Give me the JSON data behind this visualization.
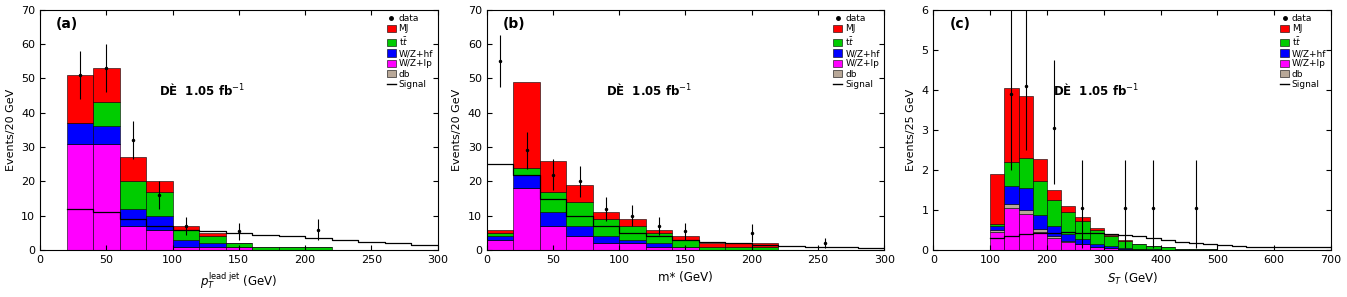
{
  "panel_a": {
    "xlabel": "$p_T^{\\mathrm{lead\\ jet}}$ (GeV)",
    "ylabel": "Events/20 GeV",
    "label": "(a)",
    "xlim": [
      0,
      300
    ],
    "ylim": [
      0,
      70
    ],
    "xticks": [
      0,
      50,
      100,
      150,
      200,
      250,
      300
    ],
    "yticks": [
      0,
      10,
      20,
      30,
      40,
      50,
      60,
      70
    ],
    "bin_edges": [
      20,
      40,
      60,
      80,
      100,
      120,
      140,
      160,
      180,
      200,
      220,
      240,
      260,
      280,
      300
    ],
    "WZlp": [
      31,
      31,
      7,
      6,
      1,
      1,
      1,
      0,
      0,
      0,
      0,
      0,
      0,
      0
    ],
    "db": [
      0,
      0,
      0,
      0,
      0,
      0,
      0,
      0,
      0,
      0,
      0,
      0,
      0,
      0
    ],
    "WZhf": [
      6,
      5,
      5,
      4,
      2,
      1,
      0,
      0,
      0,
      0,
      0,
      0,
      0,
      0
    ],
    "ttbar": [
      0,
      7,
      8,
      7,
      3,
      2,
      1,
      1,
      1,
      1,
      0,
      0,
      0,
      0
    ],
    "MJ": [
      14,
      10,
      7,
      3,
      1,
      1,
      0,
      0,
      0,
      0,
      0,
      0,
      0,
      0
    ],
    "signal": [
      12,
      11,
      9,
      7,
      6,
      5.5,
      5,
      4.5,
      4,
      3.5,
      3,
      2.5,
      2,
      1.5
    ],
    "data_x": [
      30,
      50,
      70,
      90,
      110,
      150,
      210
    ],
    "data_y": [
      51,
      53,
      32,
      16,
      7,
      5.5,
      6
    ],
    "data_yerr_lo": [
      7,
      7,
      5.5,
      4,
      2.5,
      2.5,
      3
    ],
    "data_yerr_hi": [
      7,
      7,
      5.5,
      4,
      2.5,
      2.5,
      3
    ]
  },
  "panel_b": {
    "xlabel": "m* (GeV)",
    "ylabel": "Events/20 GeV",
    "label": "(b)",
    "xlim": [
      0,
      300
    ],
    "ylim": [
      0,
      70
    ],
    "xticks": [
      0,
      50,
      100,
      150,
      200,
      250,
      300
    ],
    "yticks": [
      0,
      10,
      20,
      30,
      40,
      50,
      60,
      70
    ],
    "bin_edges": [
      0,
      20,
      40,
      60,
      80,
      100,
      120,
      140,
      160,
      180,
      200,
      220,
      240,
      260,
      280,
      300
    ],
    "WZlp": [
      3,
      18,
      7,
      4,
      2,
      2,
      1,
      1,
      0,
      0,
      0,
      0,
      0,
      0,
      0
    ],
    "db": [
      0,
      0,
      0,
      0,
      0,
      0,
      0,
      0,
      0,
      0,
      0,
      0,
      0,
      0,
      0
    ],
    "WZhf": [
      1,
      4,
      4,
      3,
      2,
      1,
      1,
      0,
      0,
      0,
      0,
      0,
      0,
      0,
      0
    ],
    "ttbar": [
      1,
      2,
      6,
      7,
      5,
      4,
      3,
      2,
      1,
      1,
      1,
      0,
      0,
      0,
      0
    ],
    "MJ": [
      1,
      25,
      9,
      5,
      2,
      2,
      1,
      1,
      1,
      1,
      1,
      0,
      0,
      0,
      0
    ],
    "signal": [
      25,
      22,
      15,
      10,
      7,
      5,
      4,
      3,
      2.5,
      2,
      1.5,
      1.2,
      1.0,
      0.8,
      0.5
    ],
    "data_x": [
      10,
      30,
      50,
      70,
      90,
      110,
      130,
      150,
      200,
      255
    ],
    "data_y": [
      55,
      29,
      22,
      20,
      12,
      10,
      7,
      5.5,
      5,
      2
    ],
    "data_yerr_lo": [
      7.5,
      5.5,
      4.5,
      4.5,
      3.5,
      3,
      2.5,
      2.5,
      2.5,
      1.5
    ],
    "data_yerr_hi": [
      7.5,
      5.5,
      4.5,
      4.5,
      3.5,
      3,
      2.5,
      2.5,
      2.5,
      1.5
    ]
  },
  "panel_c": {
    "xlabel": "$S_T$ (GeV)",
    "ylabel": "Events/25 GeV",
    "label": "(c)",
    "xlim": [
      0,
      700
    ],
    "ylim": [
      0,
      6
    ],
    "xticks": [
      0,
      100,
      200,
      300,
      400,
      500,
      600,
      700
    ],
    "yticks": [
      0,
      1,
      2,
      3,
      4,
      5,
      6
    ],
    "bin_edges": [
      100,
      125,
      150,
      175,
      200,
      225,
      250,
      275,
      300,
      325,
      350,
      375,
      400,
      425,
      450,
      475,
      500,
      525,
      550,
      700
    ],
    "WZlp": [
      0.45,
      1.05,
      0.9,
      0.45,
      0.3,
      0.2,
      0.15,
      0.08,
      0.05,
      0.03,
      0.02,
      0.01,
      0.01,
      0.0,
      0.0,
      0.0,
      0.0,
      0.0,
      0.0
    ],
    "db": [
      0.05,
      0.1,
      0.1,
      0.08,
      0.05,
      0.03,
      0.01,
      0.0,
      0.0,
      0.0,
      0.0,
      0.0,
      0.0,
      0.0,
      0.0,
      0.0,
      0.0,
      0.0,
      0.0
    ],
    "WZhf": [
      0.1,
      0.45,
      0.55,
      0.35,
      0.25,
      0.18,
      0.12,
      0.08,
      0.05,
      0.03,
      0.02,
      0.01,
      0.0,
      0.0,
      0.0,
      0.0,
      0.0,
      0.0,
      0.0
    ],
    "ttbar": [
      0.05,
      0.6,
      0.75,
      0.85,
      0.65,
      0.55,
      0.45,
      0.35,
      0.25,
      0.18,
      0.12,
      0.08,
      0.06,
      0.04,
      0.03,
      0.02,
      0.01,
      0.01,
      0.0
    ],
    "MJ": [
      1.25,
      1.85,
      1.55,
      0.55,
      0.25,
      0.15,
      0.1,
      0.05,
      0.02,
      0.01,
      0.0,
      0.0,
      0.0,
      0.0,
      0.0,
      0.0,
      0.0,
      0.0,
      0.0
    ],
    "signal": [
      0.3,
      0.35,
      0.4,
      0.42,
      0.44,
      0.46,
      0.44,
      0.42,
      0.4,
      0.38,
      0.35,
      0.3,
      0.25,
      0.2,
      0.18,
      0.15,
      0.12,
      0.1,
      0.08
    ],
    "data_x": [
      137.5,
      162.5,
      212.5,
      262.5,
      337.5,
      387.5,
      462.5
    ],
    "data_y": [
      3.9,
      4.1,
      3.05,
      1.05,
      1.05,
      1.05,
      1.05
    ],
    "data_yerr_lo": [
      1.9,
      1.6,
      1.4,
      1.0,
      1.0,
      1.0,
      1.0
    ],
    "data_yerr_hi": [
      2.1,
      1.9,
      1.7,
      1.2,
      1.2,
      1.2,
      1.2
    ]
  },
  "colors": {
    "MJ": "#ff0000",
    "ttbar": "#00cc00",
    "WZhf": "#0000ff",
    "WZlp": "#ff00ff",
    "db": "#b8a898",
    "signal": "#000000"
  },
  "legend_labels": {
    "data": "data",
    "MJ": "MJ",
    "ttbar": "t$\\bar{t}$",
    "WZhf": "W/Z+hf",
    "WZlp": "W/Z+lp",
    "db": "db",
    "signal": "Signal"
  },
  "lumi_text": "DÈ  1.05 fb$^{-1}$",
  "background_color": "#ffffff"
}
